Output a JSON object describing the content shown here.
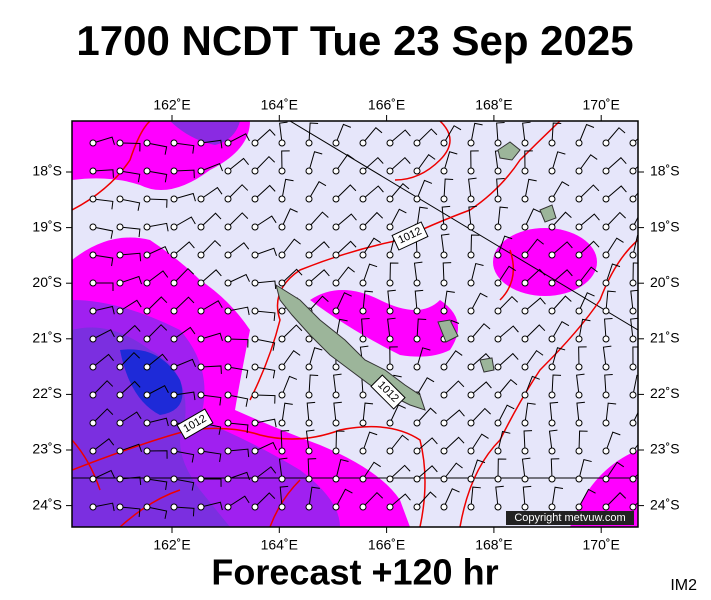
{
  "title": "1700 NCDT Tue 23 Sep 2025",
  "forecast": "Forecast +120 hr",
  "corner_label": "IM2",
  "copyright": "Copyright metvuw.com",
  "map": {
    "lon_labels": [
      "162˚E",
      "164˚E",
      "166˚E",
      "168˚E",
      "170˚E"
    ],
    "lat_labels": [
      "18˚S",
      "19˚S",
      "20˚S",
      "21˚S",
      "22˚S",
      "23˚S",
      "24˚S"
    ],
    "isobar_labels": [
      "1012",
      "1012",
      "1012"
    ]
  }
}
